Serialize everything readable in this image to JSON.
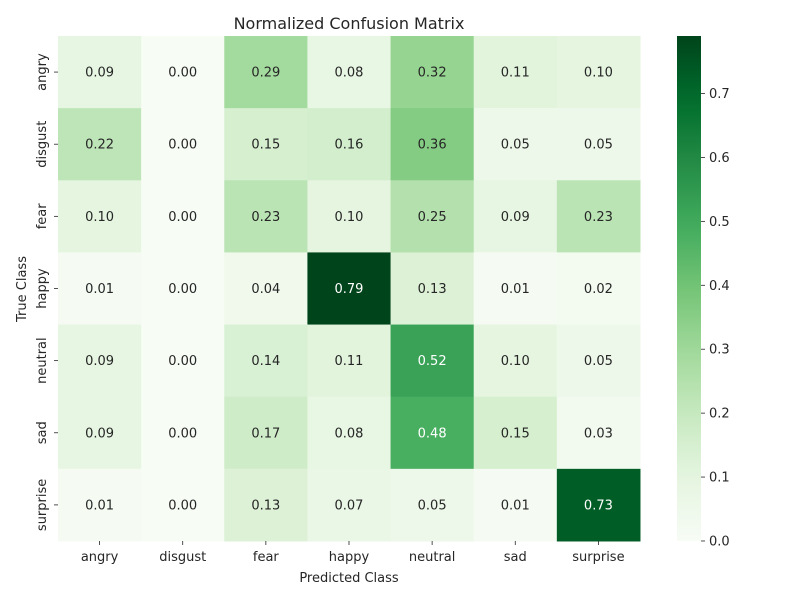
{
  "chart_data": {
    "type": "heatmap",
    "title": "Normalized Confusion Matrix",
    "xlabel": "Predicted Class",
    "ylabel": "True Class",
    "x_categories": [
      "angry",
      "disgust",
      "fear",
      "happy",
      "neutral",
      "sad",
      "surprise"
    ],
    "y_categories": [
      "angry",
      "disgust",
      "fear",
      "happy",
      "neutral",
      "sad",
      "surprise"
    ],
    "values": [
      [
        0.09,
        0.0,
        0.29,
        0.08,
        0.32,
        0.11,
        0.1
      ],
      [
        0.22,
        0.0,
        0.15,
        0.16,
        0.36,
        0.05,
        0.05
      ],
      [
        0.1,
        0.0,
        0.23,
        0.1,
        0.25,
        0.09,
        0.23
      ],
      [
        0.01,
        0.0,
        0.04,
        0.79,
        0.13,
        0.01,
        0.02
      ],
      [
        0.09,
        0.0,
        0.14,
        0.11,
        0.52,
        0.1,
        0.05
      ],
      [
        0.09,
        0.0,
        0.17,
        0.08,
        0.48,
        0.15,
        0.03
      ],
      [
        0.01,
        0.0,
        0.13,
        0.07,
        0.05,
        0.01,
        0.73
      ]
    ],
    "colormap": "Greens",
    "colorbar": {
      "range": [
        0.0,
        0.79
      ],
      "ticks": [
        0.0,
        0.1,
        0.2,
        0.3,
        0.4,
        0.5,
        0.6,
        0.7
      ],
      "tick_labels": [
        "0.0",
        "0.1",
        "0.2",
        "0.3",
        "0.4",
        "0.5",
        "0.6",
        "0.7"
      ]
    },
    "legend": "colorbar-right",
    "grid": false,
    "value_format": "0.00"
  }
}
